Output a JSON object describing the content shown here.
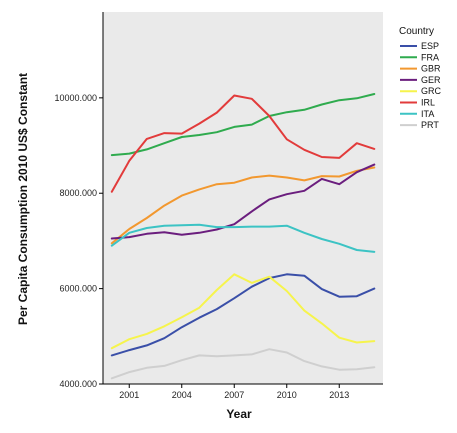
{
  "chart_data": {
    "type": "line",
    "title": "",
    "xlabel": "Year",
    "ylabel": "Per Capita Consumption 2010 US$ Constant",
    "xlim": [
      1999.5,
      2015.5
    ],
    "ylim": [
      4000,
      11800
    ],
    "xticks": [
      2001,
      2004,
      2007,
      2010,
      2013
    ],
    "xtick_labels": [
      "2001",
      "2004",
      "2007",
      "2010",
      "2013"
    ],
    "yticks": [
      4000,
      6000,
      8000,
      10000
    ],
    "ytick_labels": [
      "4000.000",
      "6000.000",
      "8000.000",
      "10000.000"
    ],
    "grid": false,
    "legend_title": "Country",
    "legend_position": "right",
    "x": [
      2000,
      2001,
      2002,
      2003,
      2004,
      2005,
      2006,
      2007,
      2008,
      2009,
      2010,
      2011,
      2012,
      2013,
      2014,
      2015
    ],
    "series": [
      {
        "name": "ESP",
        "color": "#3a4fa8",
        "values": [
          4600,
          4710,
          4810,
          4960,
          5190,
          5390,
          5570,
          5800,
          6040,
          6220,
          6300,
          6270,
          5990,
          5830,
          5840,
          6000
        ]
      },
      {
        "name": "FRA",
        "color": "#2fab4e",
        "values": [
          8800,
          8830,
          8920,
          9050,
          9180,
          9220,
          9280,
          9390,
          9440,
          9620,
          9700,
          9750,
          9860,
          9950,
          9990,
          10080
        ]
      },
      {
        "name": "GBR",
        "color": "#f2982f",
        "values": [
          6950,
          7250,
          7480,
          7740,
          7950,
          8080,
          8190,
          8220,
          8330,
          8370,
          8330,
          8270,
          8360,
          8350,
          8470,
          8540
        ]
      },
      {
        "name": "GER",
        "color": "#6b1e7e",
        "values": [
          7050,
          7080,
          7150,
          7180,
          7130,
          7170,
          7240,
          7350,
          7620,
          7870,
          7980,
          8050,
          8300,
          8190,
          8440,
          8600
        ]
      },
      {
        "name": "GRC",
        "color": "#f6f44c",
        "values": [
          4750,
          4940,
          5050,
          5210,
          5400,
          5600,
          5970,
          6300,
          6120,
          6250,
          5950,
          5540,
          5270,
          4970,
          4870,
          4900
        ]
      },
      {
        "name": "IRL",
        "color": "#e23b3b",
        "values": [
          8030,
          8680,
          9140,
          9260,
          9250,
          9460,
          9690,
          10050,
          9980,
          9620,
          9130,
          8910,
          8760,
          8740,
          9050,
          8930
        ]
      },
      {
        "name": "ITA",
        "color": "#3cc3c4",
        "values": [
          6900,
          7170,
          7270,
          7320,
          7330,
          7340,
          7290,
          7290,
          7300,
          7300,
          7320,
          7170,
          7040,
          6940,
          6810,
          6770
        ]
      },
      {
        "name": "PRT",
        "color": "#cfcfcf",
        "values": [
          4120,
          4250,
          4340,
          4380,
          4500,
          4600,
          4580,
          4600,
          4620,
          4730,
          4660,
          4480,
          4370,
          4300,
          4310,
          4350
        ]
      }
    ]
  }
}
